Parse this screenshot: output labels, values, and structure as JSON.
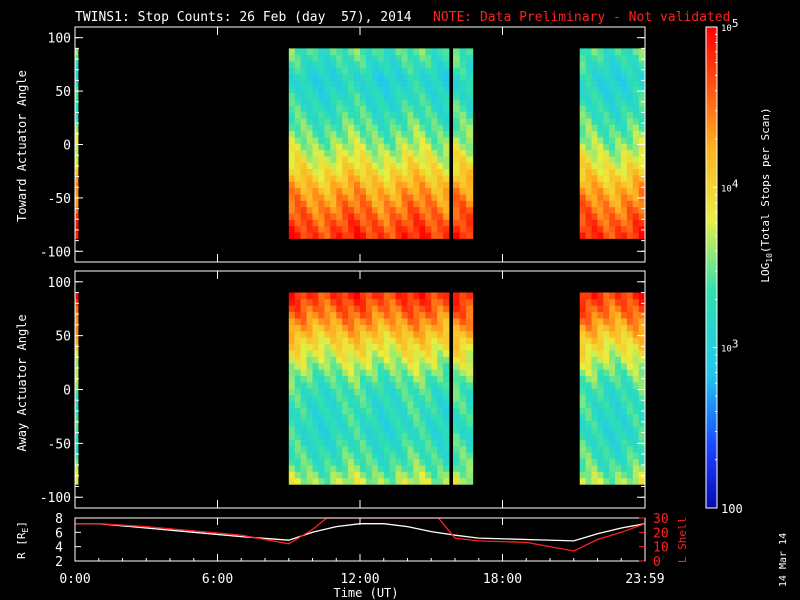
{
  "header": {
    "title": "TWINS1: Stop Counts: 26 Feb (day  57), 2014",
    "note": "NOTE: Data Preliminary - Not validated"
  },
  "colors": {
    "background": "#000000",
    "foreground": "#ffffff",
    "note": "#ff2020",
    "orbit_r": "#ffffff",
    "orbit_lshell": "#ff2020"
  },
  "side_label": "14 Mar 14",
  "chart_data": [
    {
      "type": "heatmap",
      "panel": "toward",
      "ylabel": "Toward Actuator Angle",
      "yticks": [
        -100,
        -50,
        0,
        50,
        100
      ],
      "ylim": [
        -110,
        110
      ],
      "angle_range": [
        -88,
        90
      ],
      "xlim_hours": [
        0,
        24
      ],
      "colorscale": "rainbow log10",
      "zlim": [
        100,
        100000
      ],
      "data_blocks": [
        {
          "start": "00:00",
          "end": "00:04"
        },
        {
          "start": "09:00",
          "end": "15:45"
        },
        {
          "start": "15:55",
          "end": "16:45"
        },
        {
          "start": "21:15",
          "end": "23:59"
        }
      ],
      "profile_toward": [
        {
          "angle": 90,
          "log10_counts": 3.4
        },
        {
          "angle": 60,
          "log10_counts": 3.1
        },
        {
          "angle": 30,
          "log10_counts": 3.3
        },
        {
          "angle": 0,
          "log10_counts": 3.6
        },
        {
          "angle": -20,
          "log10_counts": 3.9
        },
        {
          "angle": -45,
          "log10_counts": 4.3
        },
        {
          "angle": -70,
          "log10_counts": 4.6
        },
        {
          "angle": -88,
          "log10_counts": 4.8
        }
      ]
    },
    {
      "type": "heatmap",
      "panel": "away",
      "ylabel": "Away Actuator Angle",
      "yticks": [
        -100,
        -50,
        0,
        50,
        100
      ],
      "ylim": [
        -110,
        110
      ],
      "angle_range": [
        -88,
        90
      ],
      "xlim_hours": [
        0,
        24
      ],
      "colorscale": "rainbow log10",
      "zlim": [
        100,
        100000
      ],
      "data_blocks": [
        {
          "start": "00:00",
          "end": "00:04"
        },
        {
          "start": "09:00",
          "end": "15:45"
        },
        {
          "start": "15:55",
          "end": "16:45"
        },
        {
          "start": "21:15",
          "end": "23:59"
        }
      ],
      "profile_away": [
        {
          "angle": 90,
          "log10_counts": 4.8
        },
        {
          "angle": 70,
          "log10_counts": 4.5
        },
        {
          "angle": 45,
          "log10_counts": 4.0
        },
        {
          "angle": 20,
          "log10_counts": 3.6
        },
        {
          "angle": 0,
          "log10_counts": 3.3
        },
        {
          "angle": -40,
          "log10_counts": 3.2
        },
        {
          "angle": -70,
          "log10_counts": 3.4
        },
        {
          "angle": -88,
          "log10_counts": 3.7
        }
      ]
    },
    {
      "type": "line",
      "panel": "orbit",
      "ylabel_left": "R [R",
      "ylabel_left_sub": "E",
      "ylabel_left_end": "]",
      "ylabel_right": "L Shell",
      "ylim_left": [
        2,
        8
      ],
      "yticks_left": [
        2,
        4,
        6,
        8
      ],
      "ylim_right": [
        0,
        30
      ],
      "yticks_right": [
        0,
        10,
        20,
        30
      ],
      "xlabel": "Time (UT)",
      "xticks": [
        "0:00",
        "6:00",
        "12:00",
        "18:00",
        "23:59"
      ],
      "xtick_hours": [
        0,
        6,
        12,
        18,
        24
      ],
      "series": [
        {
          "axis": "left",
          "color": "#ffffff",
          "x": [
            0,
            1,
            3,
            5,
            7,
            9,
            10,
            11,
            12,
            13,
            14,
            15,
            16,
            17,
            19,
            21,
            22,
            23,
            24
          ],
          "y": [
            7.2,
            7.2,
            6.6,
            6.0,
            5.4,
            4.9,
            6.0,
            6.8,
            7.2,
            7.2,
            6.8,
            6.1,
            5.6,
            5.2,
            5.0,
            4.8,
            5.8,
            6.6,
            7.2
          ]
        },
        {
          "axis": "right",
          "color": "#ff2020",
          "x": [
            0,
            1,
            3,
            5,
            7,
            9,
            10,
            10.6,
            15.3,
            16,
            17,
            19,
            21,
            22,
            23,
            24
          ],
          "y": [
            26,
            26,
            24,
            21,
            18,
            12,
            22,
            30,
            30,
            16,
            14,
            13,
            7,
            15,
            20,
            26
          ]
        }
      ]
    }
  ],
  "colorbar": {
    "label_pre": "LOG",
    "label_sub": "10",
    "label_post": "(Total Stops per Scan)",
    "ticks": [
      {
        "value": 100000,
        "base": "10",
        "exp": "5"
      },
      {
        "value": 10000,
        "base": "10",
        "exp": "4"
      },
      {
        "value": 1000,
        "base": "10",
        "exp": "3"
      },
      {
        "value": 100,
        "base": "100",
        "exp": ""
      }
    ]
  }
}
